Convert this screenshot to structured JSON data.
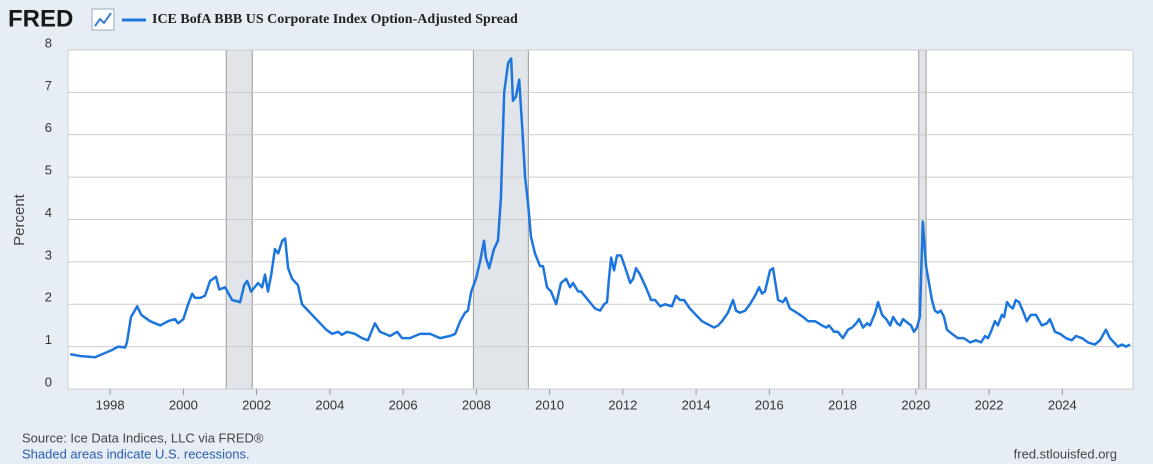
{
  "chart_data": {
    "type": "line",
    "logo": "FRED",
    "ylabel": "Percent",
    "source": "Source: Ice Data Indices, LLC via FRED®",
    "note": "Shaded areas indicate U.S. recessions.",
    "site": "fred.stlouisfed.org",
    "xlim": [
      1996.85,
      2025.93
    ],
    "xticks": [
      1998,
      2000,
      2002,
      2004,
      2006,
      2008,
      2010,
      2012,
      2014,
      2016,
      2018,
      2020,
      2022,
      2024
    ],
    "ylim": [
      0,
      8
    ],
    "yticks": [
      0,
      1,
      2,
      3,
      4,
      5,
      6,
      7,
      8
    ],
    "grid": true,
    "recession_color": "#e1e5ea",
    "recessions": [
      [
        2001.17,
        2001.88
      ],
      [
        2007.92,
        2009.42
      ],
      [
        2020.08,
        2020.28
      ]
    ],
    "x": [
      1996.91,
      1997.18,
      1997.59,
      1997.86,
      1998.05,
      1998.22,
      1998.41,
      1998.46,
      1998.57,
      1998.74,
      1998.85,
      1999.09,
      1999.37,
      1999.58,
      1999.77,
      1999.86,
      2000.0,
      2000.13,
      2000.24,
      2000.32,
      2000.46,
      2000.59,
      2000.73,
      2000.89,
      2000.98,
      2001.14,
      2001.33,
      2001.55,
      2001.66,
      2001.74,
      2001.85,
      2002.04,
      2002.15,
      2002.23,
      2002.31,
      2002.4,
      2002.5,
      2002.59,
      2002.7,
      2002.78,
      2002.86,
      2002.97,
      2003.13,
      2003.24,
      2003.46,
      2003.68,
      2003.9,
      2004.06,
      2004.22,
      2004.33,
      2004.47,
      2004.69,
      2004.88,
      2005.04,
      2005.23,
      2005.37,
      2005.51,
      2005.64,
      2005.84,
      2005.97,
      2006.19,
      2006.46,
      2006.74,
      2007.01,
      2007.28,
      2007.42,
      2007.56,
      2007.69,
      2007.77,
      2007.86,
      2007.99,
      2008.1,
      2008.21,
      2008.26,
      2008.35,
      2008.48,
      2008.59,
      2008.67,
      2008.76,
      2008.87,
      2008.95,
      2009.0,
      2009.08,
      2009.17,
      2009.25,
      2009.33,
      2009.41,
      2009.49,
      2009.6,
      2009.74,
      2009.82,
      2009.93,
      2010.04,
      2010.18,
      2010.31,
      2010.45,
      2010.56,
      2010.64,
      2010.78,
      2010.86,
      2011.05,
      2011.24,
      2011.38,
      2011.49,
      2011.57,
      2011.62,
      2011.68,
      2011.76,
      2011.84,
      2011.95,
      2012.09,
      2012.2,
      2012.28,
      2012.36,
      2012.47,
      2012.63,
      2012.77,
      2012.88,
      2013.02,
      2013.15,
      2013.34,
      2013.45,
      2013.56,
      2013.67,
      2013.83,
      2013.94,
      2014.16,
      2014.38,
      2014.49,
      2014.6,
      2014.71,
      2014.87,
      2015.01,
      2015.09,
      2015.2,
      2015.34,
      2015.47,
      2015.61,
      2015.72,
      2015.8,
      2015.88,
      2016.02,
      2016.1,
      2016.24,
      2016.37,
      2016.45,
      2016.56,
      2016.75,
      2016.92,
      2017.06,
      2017.25,
      2017.44,
      2017.55,
      2017.63,
      2017.77,
      2017.87,
      2018.01,
      2018.15,
      2018.26,
      2018.37,
      2018.45,
      2018.56,
      2018.67,
      2018.75,
      2018.89,
      2018.97,
      2019.08,
      2019.19,
      2019.3,
      2019.38,
      2019.49,
      2019.57,
      2019.65,
      2019.79,
      2019.87,
      2019.95,
      2020.03,
      2020.11,
      2020.19,
      2020.28,
      2020.36,
      2020.44,
      2020.52,
      2020.6,
      2020.68,
      2020.77,
      2020.85,
      2020.99,
      2021.15,
      2021.31,
      2021.48,
      2021.64,
      2021.78,
      2021.89,
      2021.97,
      2022.05,
      2022.16,
      2022.24,
      2022.35,
      2022.41,
      2022.49,
      2022.57,
      2022.65,
      2022.73,
      2022.82,
      2022.92,
      2023.03,
      2023.14,
      2023.28,
      2023.44,
      2023.58,
      2023.66,
      2023.8,
      2023.94,
      2024.1,
      2024.26,
      2024.37,
      2024.54,
      2024.7,
      2024.89,
      2025.03,
      2025.19,
      2025.3,
      2025.41,
      2025.52,
      2025.63,
      2025.74,
      2025.85
    ],
    "series": [
      {
        "name": "ICE BofA BBB US Corporate Index Option-Adjusted Spread",
        "color": "#1c76dd",
        "values": [
          0.82,
          0.78,
          0.75,
          0.85,
          0.92,
          1.0,
          0.98,
          1.1,
          1.7,
          1.95,
          1.75,
          1.6,
          1.5,
          1.6,
          1.65,
          1.55,
          1.65,
          2.0,
          2.25,
          2.15,
          2.15,
          2.2,
          2.55,
          2.65,
          2.35,
          2.4,
          2.1,
          2.05,
          2.45,
          2.55,
          2.3,
          2.5,
          2.4,
          2.7,
          2.3,
          2.7,
          3.3,
          3.2,
          3.5,
          3.55,
          2.85,
          2.6,
          2.45,
          2.0,
          1.8,
          1.6,
          1.4,
          1.3,
          1.35,
          1.28,
          1.35,
          1.3,
          1.2,
          1.15,
          1.55,
          1.35,
          1.3,
          1.25,
          1.35,
          1.2,
          1.2,
          1.3,
          1.3,
          1.2,
          1.25,
          1.3,
          1.6,
          1.8,
          1.85,
          2.3,
          2.6,
          3.0,
          3.5,
          3.1,
          2.85,
          3.3,
          3.5,
          4.5,
          7.0,
          7.7,
          7.8,
          6.8,
          6.9,
          7.3,
          6.2,
          5.0,
          4.4,
          3.6,
          3.2,
          2.9,
          2.9,
          2.4,
          2.3,
          2.0,
          2.5,
          2.6,
          2.4,
          2.5,
          2.3,
          2.3,
          2.1,
          1.9,
          1.85,
          2.0,
          2.05,
          2.6,
          3.1,
          2.8,
          3.15,
          3.15,
          2.8,
          2.5,
          2.6,
          2.85,
          2.7,
          2.4,
          2.1,
          2.1,
          1.95,
          2.0,
          1.95,
          2.2,
          2.1,
          2.1,
          1.9,
          1.8,
          1.6,
          1.5,
          1.45,
          1.5,
          1.6,
          1.8,
          2.1,
          1.85,
          1.8,
          1.85,
          2.0,
          2.2,
          2.4,
          2.25,
          2.3,
          2.8,
          2.85,
          2.1,
          2.05,
          2.15,
          1.9,
          1.8,
          1.7,
          1.6,
          1.6,
          1.5,
          1.45,
          1.5,
          1.35,
          1.35,
          1.2,
          1.4,
          1.45,
          1.55,
          1.65,
          1.45,
          1.55,
          1.5,
          1.8,
          2.05,
          1.75,
          1.65,
          1.5,
          1.7,
          1.55,
          1.5,
          1.65,
          1.55,
          1.5,
          1.35,
          1.45,
          1.7,
          3.95,
          2.9,
          2.5,
          2.1,
          1.85,
          1.8,
          1.85,
          1.7,
          1.4,
          1.3,
          1.2,
          1.2,
          1.1,
          1.15,
          1.1,
          1.25,
          1.2,
          1.35,
          1.6,
          1.5,
          1.75,
          1.7,
          2.05,
          1.95,
          1.9,
          2.1,
          2.05,
          1.85,
          1.6,
          1.75,
          1.75,
          1.5,
          1.55,
          1.65,
          1.35,
          1.3,
          1.2,
          1.15,
          1.25,
          1.2,
          1.1,
          1.05,
          1.15,
          1.4,
          1.2,
          1.1,
          1.0,
          1.05,
          1.0,
          1.05
        ]
      }
    ]
  }
}
